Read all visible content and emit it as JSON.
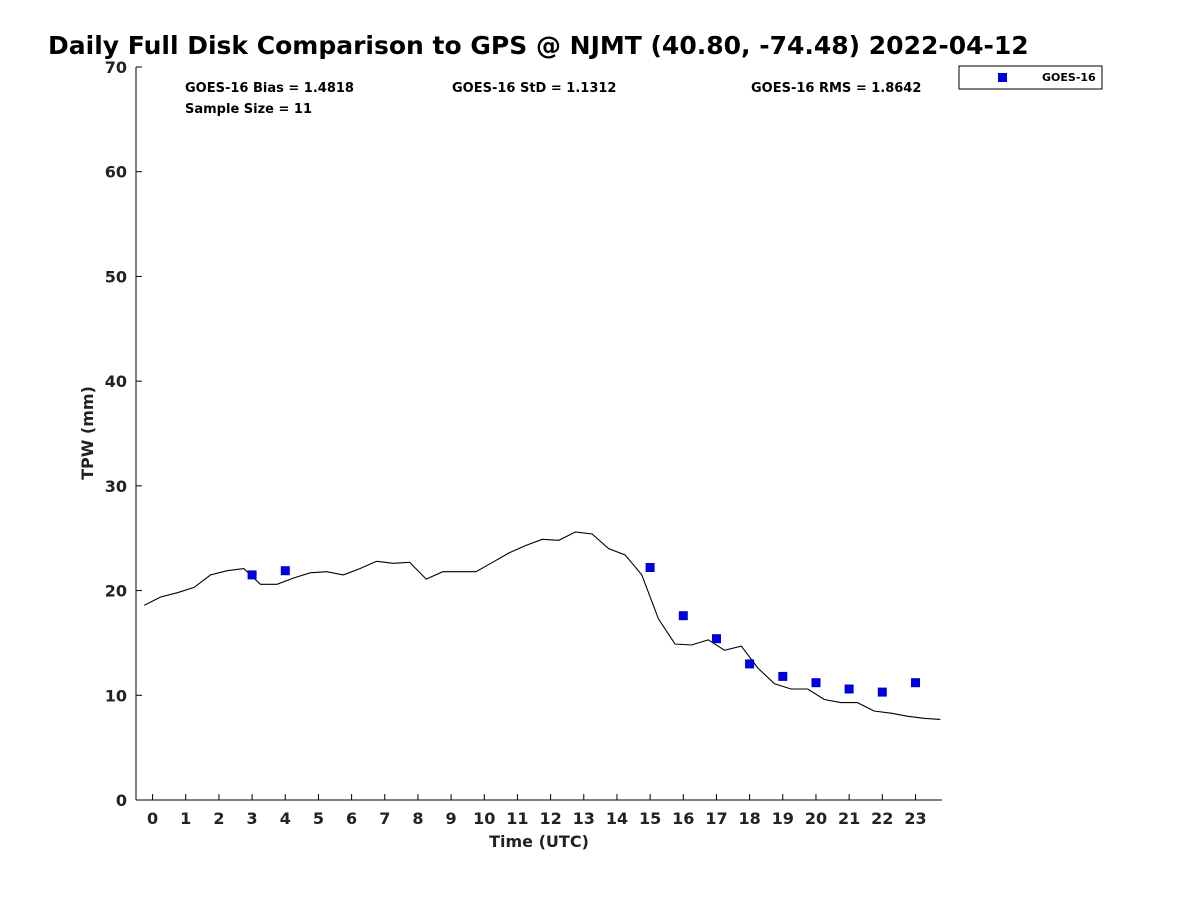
{
  "chart_data": {
    "type": "scatter",
    "title": "Daily Full Disk Comparison to GPS @ NJMT (40.80, -74.48) 2022-04-12",
    "xlabel": "Time (UTC)",
    "ylabel": "TPW (mm)",
    "xlim": [
      -0.5,
      23.8
    ],
    "ylim": [
      0,
      70
    ],
    "x_ticks": [
      0,
      1,
      2,
      3,
      4,
      5,
      6,
      7,
      8,
      9,
      10,
      11,
      12,
      13,
      14,
      15,
      16,
      17,
      18,
      19,
      20,
      21,
      22,
      23
    ],
    "x_tick_labels": [
      "0",
      "1",
      "2",
      "3",
      "4",
      "5",
      "6",
      "7",
      "8",
      "9",
      "10",
      "11",
      "12",
      "13",
      "14",
      "15",
      "16",
      "17",
      "18",
      "19",
      "20",
      "21",
      "22",
      "23"
    ],
    "y_ticks": [
      0,
      10,
      20,
      30,
      40,
      50,
      60,
      70
    ],
    "y_tick_labels": [
      "0",
      "10",
      "20",
      "30",
      "40",
      "50",
      "60",
      "70"
    ],
    "grid": false,
    "legend_position": "top-right, outside plot",
    "stats": {
      "bias": "GOES-16 Bias = 1.4818",
      "std": "GOES-16 StD = 1.1312",
      "rms": "GOES-16 RMS = 1.8642",
      "sample_size": "Sample Size = 11"
    },
    "series": [
      {
        "name": "GOES-16",
        "kind": "markers",
        "marker": "square",
        "color": "#0000dd",
        "x": [
          3,
          4,
          15,
          16,
          17,
          18,
          19,
          20,
          21,
          22,
          23
        ],
        "y": [
          21.5,
          21.9,
          22.2,
          17.6,
          15.4,
          13.0,
          11.8,
          11.2,
          10.6,
          10.3,
          11.2
        ]
      },
      {
        "kind": "line",
        "color": "#000000",
        "x": [
          -0.25,
          0.25,
          0.75,
          1.25,
          1.75,
          2.25,
          2.75,
          3.25,
          3.75,
          4.25,
          4.75,
          5.25,
          5.75,
          6.25,
          6.75,
          7.25,
          7.75,
          8.25,
          8.75,
          9.25,
          9.75,
          10.25,
          10.75,
          11.25,
          11.75,
          12.25,
          12.75,
          13.25,
          13.75,
          14.25,
          14.75,
          15.25,
          15.75,
          16.25,
          16.75,
          17.25,
          17.75,
          18.25,
          18.75,
          19.25,
          19.75,
          20.25,
          20.75,
          21.25,
          21.75,
          22.25,
          22.75,
          23.25,
          23.75
        ],
        "y": [
          18.6,
          19.4,
          19.8,
          20.3,
          21.5,
          21.9,
          22.1,
          20.6,
          20.6,
          21.2,
          21.7,
          21.8,
          21.5,
          22.1,
          22.8,
          22.6,
          22.7,
          21.1,
          21.8,
          21.8,
          21.8,
          22.7,
          23.6,
          24.3,
          24.9,
          24.8,
          25.6,
          25.4,
          24.0,
          23.4,
          21.5,
          17.3,
          14.9,
          14.8,
          15.3,
          14.3,
          14.7,
          12.6,
          11.1,
          10.6,
          10.6,
          9.6,
          9.3,
          9.3,
          8.5,
          8.3,
          8.0,
          7.8,
          7.7
        ]
      }
    ]
  },
  "colors": {
    "marker": "#0000dd",
    "line": "#000000",
    "axis": "#000000",
    "text": "#222222"
  }
}
